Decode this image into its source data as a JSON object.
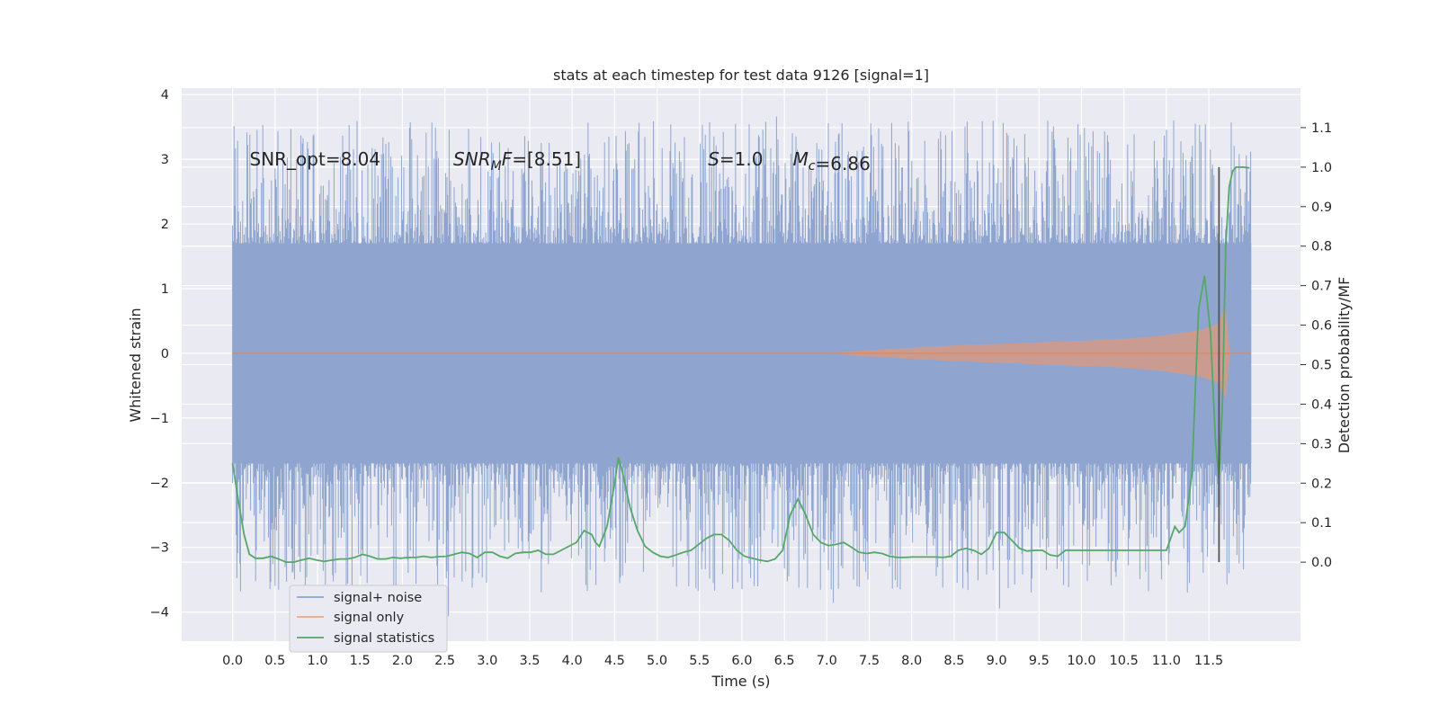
{
  "chart_data": {
    "type": "line",
    "title": "stats at each timestep for test data 9126 [signal=1]",
    "xlabel": "Time (s)",
    "ylabel_left": "Whitened strain",
    "ylabel_right": "Detection probability/MF",
    "xlim": [
      -0.6,
      12.58
    ],
    "ylim_left": [
      -4.45,
      4.1
    ],
    "ylim_right": [
      -0.2,
      1.2
    ],
    "x_ticks": [
      "0.0",
      "0.5",
      "1.0",
      "1.5",
      "2.0",
      "2.5",
      "3.0",
      "3.5",
      "4.0",
      "4.5",
      "5.0",
      "5.5",
      "6.0",
      "6.5",
      "7.0",
      "7.5",
      "8.0",
      "8.5",
      "9.0",
      "9.5",
      "10.0",
      "10.5",
      "11.0",
      "11.5"
    ],
    "y_ticks_left": [
      "4",
      "3",
      "2",
      "1",
      "0",
      "−1",
      "−2",
      "−3",
      "−4"
    ],
    "y_ticks_right": [
      "1.1",
      "1.0",
      "0.9",
      "0.8",
      "0.7",
      "0.6",
      "0.5",
      "0.4",
      "0.3",
      "0.2",
      "0.1",
      "0.0"
    ],
    "grid": true,
    "legend_position": "lower-left",
    "annotations": [
      {
        "id": "snr_opt",
        "text": "SNR_opt=8.04",
        "x": 0.2,
        "y": 3.0
      },
      {
        "id": "snr_mf",
        "text": "SNR_MF=[8.51]",
        "x": 2.6,
        "y": 3.0
      },
      {
        "id": "s",
        "text": "S=1.0",
        "x": 5.6,
        "y": 3.0
      },
      {
        "id": "mc",
        "text": "M_c=6.86",
        "x": 6.6,
        "y": 3.0
      }
    ],
    "vertical_line": {
      "x": 11.62,
      "color": "#555555"
    },
    "series": [
      {
        "name": "signal+ noise",
        "color": "#8fa5cf",
        "axis": "left",
        "x_range": [
          0.0,
          12.0
        ],
        "typical_amplitude": 1.7,
        "extremes": {
          "max": 3.7,
          "min": -4.1
        },
        "description_of_values": "dense noise band"
      },
      {
        "name": "signal only",
        "color": "#dd8452",
        "axis": "left",
        "x_range": [
          0.0,
          12.0
        ],
        "envelope": [
          [
            0.0,
            0.0
          ],
          [
            7.0,
            0.0
          ],
          [
            7.5,
            0.05
          ],
          [
            8.5,
            0.12
          ],
          [
            9.5,
            0.17
          ],
          [
            10.5,
            0.22
          ],
          [
            11.0,
            0.28
          ],
          [
            11.4,
            0.36
          ],
          [
            11.6,
            0.45
          ],
          [
            11.7,
            0.7
          ],
          [
            11.75,
            0.0
          ],
          [
            12.0,
            0.0
          ]
        ]
      },
      {
        "name": "signal statistics",
        "color": "#55a868",
        "axis": "right",
        "points": [
          [
            0.0,
            0.25
          ],
          [
            0.08,
            0.15
          ],
          [
            0.15,
            0.07
          ],
          [
            0.22,
            0.02
          ],
          [
            0.3,
            0.01
          ],
          [
            0.4,
            0.01
          ],
          [
            0.5,
            0.015
          ],
          [
            0.6,
            0.008
          ],
          [
            0.7,
            0.0
          ],
          [
            0.8,
            0.0
          ],
          [
            0.9,
            0.005
          ],
          [
            1.0,
            0.01
          ],
          [
            1.1,
            0.005
          ],
          [
            1.2,
            0.002
          ],
          [
            1.3,
            0.005
          ],
          [
            1.4,
            0.008
          ],
          [
            1.5,
            0.008
          ],
          [
            1.6,
            0.012
          ],
          [
            1.7,
            0.02
          ],
          [
            1.8,
            0.015
          ],
          [
            1.9,
            0.008
          ],
          [
            2.0,
            0.008
          ],
          [
            2.1,
            0.012
          ],
          [
            2.2,
            0.01
          ],
          [
            2.3,
            0.012
          ],
          [
            2.4,
            0.012
          ],
          [
            2.5,
            0.015
          ],
          [
            2.6,
            0.012
          ],
          [
            2.7,
            0.014
          ],
          [
            2.8,
            0.015
          ],
          [
            2.9,
            0.02
          ],
          [
            3.0,
            0.025
          ],
          [
            3.1,
            0.022
          ],
          [
            3.2,
            0.012
          ],
          [
            3.3,
            0.025
          ],
          [
            3.4,
            0.025
          ],
          [
            3.5,
            0.015
          ],
          [
            3.6,
            0.01
          ],
          [
            3.7,
            0.022
          ],
          [
            3.8,
            0.025
          ],
          [
            3.9,
            0.025
          ],
          [
            4.0,
            0.03
          ],
          [
            4.1,
            0.02
          ],
          [
            4.2,
            0.02
          ],
          [
            4.3,
            0.03
          ],
          [
            4.4,
            0.04
          ],
          [
            4.5,
            0.05
          ],
          [
            4.6,
            0.08
          ],
          [
            4.7,
            0.07
          ],
          [
            4.75,
            0.05
          ],
          [
            4.8,
            0.04
          ],
          [
            4.9,
            0.09
          ],
          [
            5.0,
            0.2
          ],
          [
            5.05,
            0.265
          ],
          [
            5.1,
            0.23
          ],
          [
            5.2,
            0.14
          ],
          [
            5.3,
            0.08
          ],
          [
            5.4,
            0.04
          ],
          [
            5.5,
            0.025
          ],
          [
            5.6,
            0.015
          ],
          [
            5.7,
            0.012
          ],
          [
            5.8,
            0.018
          ],
          [
            5.9,
            0.025
          ],
          [
            6.0,
            0.03
          ],
          [
            6.1,
            0.045
          ],
          [
            6.2,
            0.06
          ],
          [
            6.3,
            0.07
          ],
          [
            6.4,
            0.07
          ],
          [
            6.5,
            0.055
          ],
          [
            6.6,
            0.03
          ],
          [
            6.7,
            0.015
          ],
          [
            6.8,
            0.01
          ],
          [
            6.9,
            0.005
          ],
          [
            7.0,
            0.002
          ],
          [
            7.1,
            0.008
          ],
          [
            7.2,
            0.03
          ],
          [
            7.3,
            0.12
          ],
          [
            7.4,
            0.16
          ],
          [
            7.5,
            0.12
          ],
          [
            7.6,
            0.07
          ],
          [
            7.7,
            0.05
          ],
          [
            7.8,
            0.042
          ],
          [
            7.9,
            0.045
          ],
          [
            8.0,
            0.05
          ],
          [
            8.1,
            0.038
          ],
          [
            8.2,
            0.025
          ],
          [
            8.3,
            0.022
          ],
          [
            8.4,
            0.025
          ],
          [
            8.5,
            0.022
          ],
          [
            8.6,
            0.015
          ],
          [
            8.7,
            0.012
          ],
          [
            8.8,
            0.012
          ],
          [
            8.9,
            0.013
          ],
          [
            9.0,
            0.013
          ],
          [
            9.1,
            0.013
          ],
          [
            9.2,
            0.013
          ],
          [
            9.3,
            0.012
          ],
          [
            9.4,
            0.015
          ],
          [
            9.5,
            0.03
          ],
          [
            9.6,
            0.035
          ],
          [
            9.7,
            0.03
          ],
          [
            9.8,
            0.02
          ],
          [
            9.9,
            0.035
          ],
          [
            10.0,
            0.075
          ],
          [
            10.1,
            0.075
          ],
          [
            10.2,
            0.055
          ],
          [
            10.3,
            0.035
          ],
          [
            10.4,
            0.028
          ],
          [
            10.5,
            0.03
          ],
          [
            10.6,
            0.03
          ],
          [
            10.7,
            0.018
          ],
          [
            10.8,
            0.015
          ],
          [
            10.9,
            0.03
          ],
          [
            11.0,
            0.025
          ],
          [
            11.1,
            0.02
          ],
          [
            11.2,
            0.025
          ],
          [
            11.3,
            0.04
          ],
          [
            11.4,
            0.06
          ],
          [
            11.5,
            0.06
          ],
          [
            11.6,
            0.05
          ],
          [
            11.7,
            0.05
          ],
          [
            11.8,
            0.04
          ],
          [
            11.9,
            0.035
          ],
          [
            12.0,
            0.035
          ],
          [
            12.1,
            0.03
          ],
          [
            12.2,
            0.022
          ],
          [
            12.3,
            0.012
          ],
          [
            12.4,
            0.012
          ],
          [
            12.5,
            0.025
          ]
        ]
      }
    ],
    "late_statistics_points_in_plot_time": [
      [
        11.0,
        0.03
      ],
      [
        11.05,
        0.06
      ],
      [
        11.1,
        0.09
      ],
      [
        11.15,
        0.075
      ],
      [
        11.22,
        0.09
      ],
      [
        11.3,
        0.22
      ],
      [
        11.38,
        0.64
      ],
      [
        11.45,
        0.725
      ],
      [
        11.52,
        0.58
      ],
      [
        11.58,
        0.3
      ],
      [
        11.62,
        0.21
      ],
      [
        11.66,
        0.4
      ],
      [
        11.7,
        0.8
      ],
      [
        11.74,
        0.95
      ],
      [
        11.78,
        0.99
      ],
      [
        11.82,
        1.0
      ],
      [
        11.9,
        1.0
      ],
      [
        11.98,
        0.998
      ]
    ]
  }
}
